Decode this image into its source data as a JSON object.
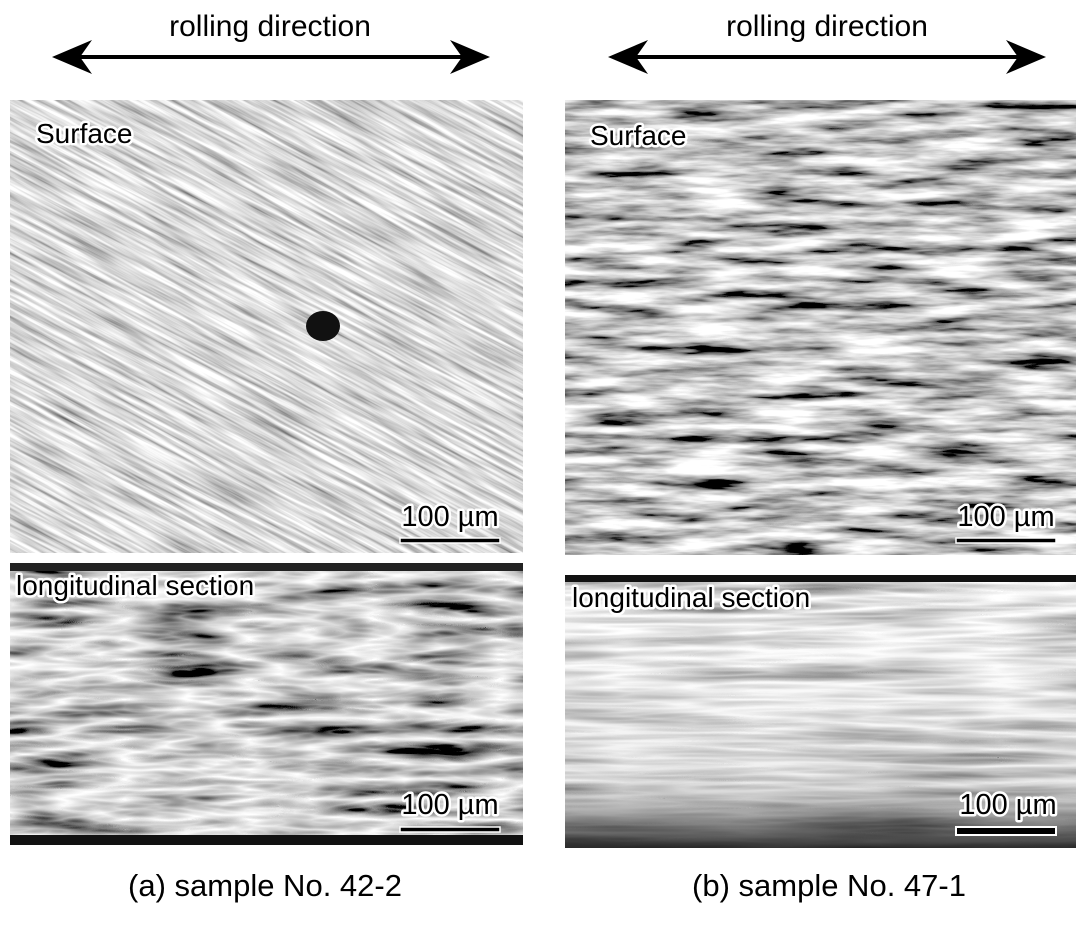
{
  "panels": [
    {
      "direction_label": "rolling direction",
      "surface": {
        "label": "Surface",
        "scale_bar": "100 µm"
      },
      "section": {
        "label": "longitudinal section",
        "scale_bar": "100 µm"
      },
      "caption": "(a) sample No. 42-2"
    },
    {
      "direction_label": "rolling direction",
      "surface": {
        "label": "Surface",
        "scale_bar": "100 µm"
      },
      "section": {
        "label": "longitudinal section",
        "scale_bar": "100 µm"
      },
      "caption": "(b) sample No. 47-1"
    }
  ]
}
